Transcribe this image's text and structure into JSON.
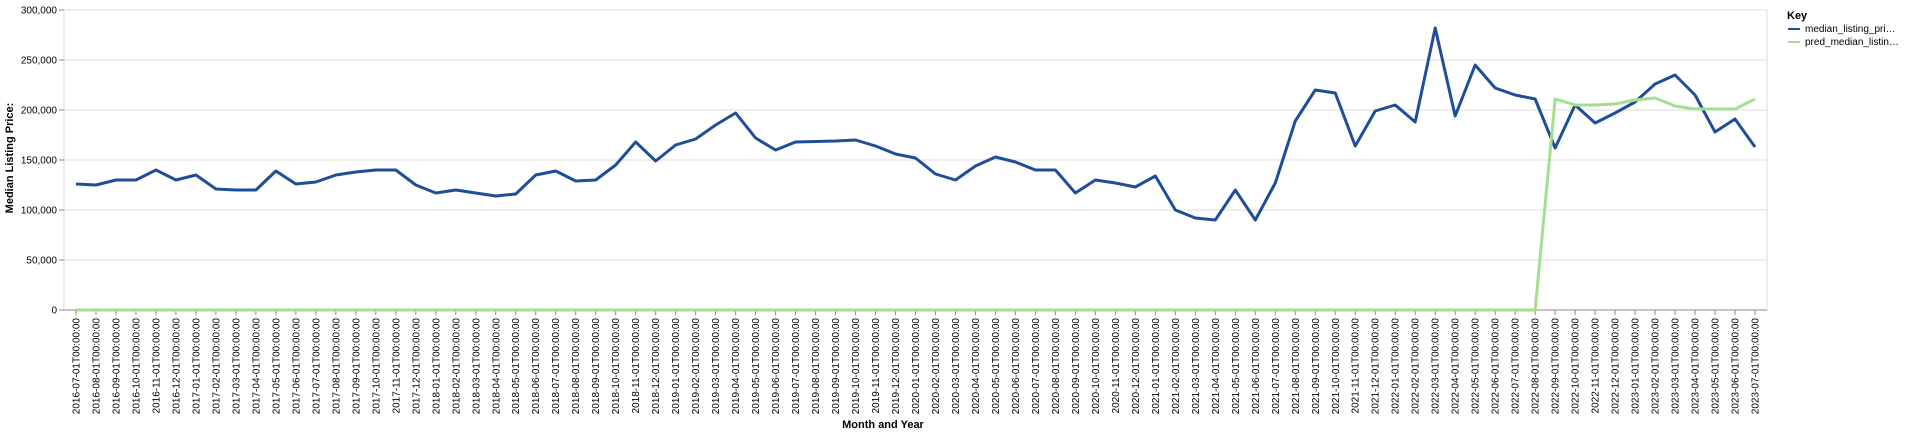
{
  "chart_data": {
    "type": "line",
    "xlabel": "Month and Year",
    "ylabel": "Median Listing Price:",
    "ylim": [
      0,
      300000
    ],
    "yticks": [
      "0",
      "50,000",
      "100,000",
      "150,000",
      "200,000",
      "250,000",
      "300,000"
    ],
    "grid": true,
    "legend": {
      "title": "Key",
      "placement": "top-right"
    },
    "x": [
      "2016-07-01T00:00:00",
      "2016-08-01T00:00:00",
      "2016-09-01T00:00:00",
      "2016-10-01T00:00:00",
      "2016-11-01T00:00:00",
      "2016-12-01T00:00:00",
      "2017-01-01T00:00:00",
      "2017-02-01T00:00:00",
      "2017-03-01T00:00:00",
      "2017-04-01T00:00:00",
      "2017-05-01T00:00:00",
      "2017-06-01T00:00:00",
      "2017-07-01T00:00:00",
      "2017-08-01T00:00:00",
      "2017-09-01T00:00:00",
      "2017-10-01T00:00:00",
      "2017-11-01T00:00:00",
      "2017-12-01T00:00:00",
      "2018-01-01T00:00:00",
      "2018-02-01T00:00:00",
      "2018-03-01T00:00:00",
      "2018-04-01T00:00:00",
      "2018-05-01T00:00:00",
      "2018-06-01T00:00:00",
      "2018-07-01T00:00:00",
      "2018-08-01T00:00:00",
      "2018-09-01T00:00:00",
      "2018-10-01T00:00:00",
      "2018-11-01T00:00:00",
      "2018-12-01T00:00:00",
      "2019-01-01T00:00:00",
      "2019-02-01T00:00:00",
      "2019-03-01T00:00:00",
      "2019-04-01T00:00:00",
      "2019-05-01T00:00:00",
      "2019-06-01T00:00:00",
      "2019-07-01T00:00:00",
      "2019-08-01T00:00:00",
      "2019-09-01T00:00:00",
      "2019-10-01T00:00:00",
      "2019-11-01T00:00:00",
      "2019-12-01T00:00:00",
      "2020-01-01T00:00:00",
      "2020-02-01T00:00:00",
      "2020-03-01T00:00:00",
      "2020-04-01T00:00:00",
      "2020-05-01T00:00:00",
      "2020-06-01T00:00:00",
      "2020-07-01T00:00:00",
      "2020-08-01T00:00:00",
      "2020-09-01T00:00:00",
      "2020-10-01T00:00:00",
      "2020-11-01T00:00:00",
      "2020-12-01T00:00:00",
      "2021-01-01T00:00:00",
      "2021-02-01T00:00:00",
      "2021-03-01T00:00:00",
      "2021-04-01T00:00:00",
      "2021-05-01T00:00:00",
      "2021-06-01T00:00:00",
      "2021-07-01T00:00:00",
      "2021-08-01T00:00:00",
      "2021-09-01T00:00:00",
      "2021-10-01T00:00:00",
      "2021-11-01T00:00:00",
      "2021-12-01T00:00:00",
      "2022-01-01T00:00:00",
      "2022-02-01T00:00:00",
      "2022-03-01T00:00:00",
      "2022-04-01T00:00:00",
      "2022-05-01T00:00:00",
      "2022-06-01T00:00:00",
      "2022-07-01T00:00:00",
      "2022-08-01T00:00:00",
      "2022-09-01T00:00:00",
      "2022-10-01T00:00:00",
      "2022-11-01T00:00:00",
      "2022-12-01T00:00:00",
      "2023-01-01T00:00:00",
      "2023-02-01T00:00:00",
      "2023-03-01T00:00:00",
      "2023-04-01T00:00:00",
      "2023-05-01T00:00:00",
      "2023-06-01T00:00:00",
      "2023-07-01T00:00:00"
    ],
    "series": [
      {
        "name": "median_listing_pri…",
        "color": "#1f4e99",
        "values": [
          126000,
          125000,
          130000,
          130000,
          140000,
          130000,
          135000,
          121000,
          120000,
          120000,
          139000,
          126000,
          128000,
          135000,
          138000,
          140000,
          140000,
          125000,
          117000,
          120000,
          117000,
          114000,
          116000,
          135000,
          139000,
          129000,
          130000,
          145000,
          168000,
          149000,
          165000,
          171000,
          185000,
          197000,
          172000,
          160000,
          168000,
          168500,
          169000,
          170000,
          164000,
          156000,
          152000,
          136000,
          130000,
          144000,
          153000,
          148000,
          140000,
          140000,
          117000,
          130000,
          127000,
          123000,
          134000,
          100000,
          92000,
          90000,
          120000,
          90000,
          127000,
          189000,
          220000,
          217000,
          164000,
          199000,
          205000,
          188000,
          282000,
          194000,
          245000,
          222000,
          215000,
          211000,
          162000,
          205000,
          187000,
          197000,
          208000,
          226000,
          235000,
          215000,
          178000,
          191000,
          163000
        ]
      },
      {
        "name": "pred_median_listin…",
        "color": "#a3df8f",
        "values": [
          0,
          0,
          0,
          0,
          0,
          0,
          0,
          0,
          0,
          0,
          0,
          0,
          0,
          0,
          0,
          0,
          0,
          0,
          0,
          0,
          0,
          0,
          0,
          0,
          0,
          0,
          0,
          0,
          0,
          0,
          0,
          0,
          0,
          0,
          0,
          0,
          0,
          0,
          0,
          0,
          0,
          0,
          0,
          0,
          0,
          0,
          0,
          0,
          0,
          0,
          0,
          0,
          0,
          0,
          0,
          0,
          0,
          0,
          0,
          0,
          0,
          0,
          0,
          0,
          0,
          0,
          0,
          0,
          0,
          0,
          0,
          0,
          0,
          0,
          211000,
          205000,
          205000,
          206000,
          210000,
          212000,
          204000,
          201000,
          201000,
          201000,
          211000
        ]
      }
    ]
  }
}
